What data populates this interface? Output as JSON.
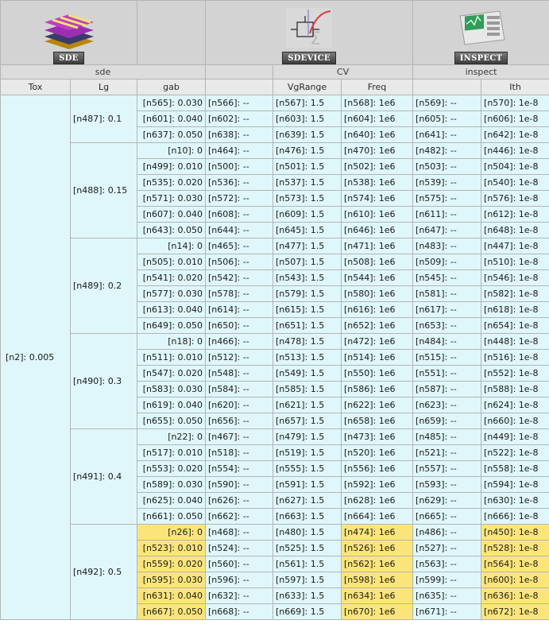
{
  "tools": [
    {
      "name": "SDE",
      "icon": "sde-layers-icon",
      "scenario": "sde"
    },
    {
      "name": "SDEVICE",
      "icon": "sdevice-cv-icon",
      "scenario": "CV"
    },
    {
      "name": "INSPECT",
      "icon": "inspect-scope-icon",
      "scenario": "inspect"
    }
  ],
  "columns": [
    "Tox",
    "Lg",
    "gab",
    "",
    "VgRange",
    "Freq",
    "",
    "Ith"
  ],
  "tox": "[n2]: 0.005",
  "highlight_color": "#fbe57a",
  "cell_color": "#dff7fa",
  "groups": [
    {
      "lg": "[n487]: 0.1",
      "rows": [
        {
          "gab": "[n565]: 0.030",
          "c": [
            "[n566]: --",
            "[n567]: 1.5",
            "[n568]: 1e6",
            "[n569]: --",
            "[n570]: 1e-8"
          ]
        },
        {
          "gab": "[n601]: 0.040",
          "c": [
            "[n602]: --",
            "[n603]: 1.5",
            "[n604]: 1e6",
            "[n605]: --",
            "[n606]: 1e-8"
          ]
        },
        {
          "gab": "[n637]: 0.050",
          "c": [
            "[n638]: --",
            "[n639]: 1.5",
            "[n640]: 1e6",
            "[n641]: --",
            "[n642]: 1e-8"
          ]
        }
      ]
    },
    {
      "lg": "[n488]: 0.15",
      "rows": [
        {
          "gab": "[n10]: 0",
          "c": [
            "[n464]: --",
            "[n476]: 1.5",
            "[n470]: 1e6",
            "[n482]: --",
            "[n446]: 1e-8"
          ]
        },
        {
          "gab": "[n499]: 0.010",
          "c": [
            "[n500]: --",
            "[n501]: 1.5",
            "[n502]: 1e6",
            "[n503]: --",
            "[n504]: 1e-8"
          ]
        },
        {
          "gab": "[n535]: 0.020",
          "c": [
            "[n536]: --",
            "[n537]: 1.5",
            "[n538]: 1e6",
            "[n539]: --",
            "[n540]: 1e-8"
          ]
        },
        {
          "gab": "[n571]: 0.030",
          "c": [
            "[n572]: --",
            "[n573]: 1.5",
            "[n574]: 1e6",
            "[n575]: --",
            "[n576]: 1e-8"
          ]
        },
        {
          "gab": "[n607]: 0.040",
          "c": [
            "[n608]: --",
            "[n609]: 1.5",
            "[n610]: 1e6",
            "[n611]: --",
            "[n612]: 1e-8"
          ]
        },
        {
          "gab": "[n643]: 0.050",
          "c": [
            "[n644]: --",
            "[n645]: 1.5",
            "[n646]: 1e6",
            "[n647]: --",
            "[n648]: 1e-8"
          ]
        }
      ]
    },
    {
      "lg": "[n489]: 0.2",
      "rows": [
        {
          "gab": "[n14]: 0",
          "c": [
            "[n465]: --",
            "[n477]: 1.5",
            "[n471]: 1e6",
            "[n483]: --",
            "[n447]: 1e-8"
          ]
        },
        {
          "gab": "[n505]: 0.010",
          "c": [
            "[n506]: --",
            "[n507]: 1.5",
            "[n508]: 1e6",
            "[n509]: --",
            "[n510]: 1e-8"
          ]
        },
        {
          "gab": "[n541]: 0.020",
          "c": [
            "[n542]: --",
            "[n543]: 1.5",
            "[n544]: 1e6",
            "[n545]: --",
            "[n546]: 1e-8"
          ]
        },
        {
          "gab": "[n577]: 0.030",
          "c": [
            "[n578]: --",
            "[n579]: 1.5",
            "[n580]: 1e6",
            "[n581]: --",
            "[n582]: 1e-8"
          ]
        },
        {
          "gab": "[n613]: 0.040",
          "c": [
            "[n614]: --",
            "[n615]: 1.5",
            "[n616]: 1e6",
            "[n617]: --",
            "[n618]: 1e-8"
          ]
        },
        {
          "gab": "[n649]: 0.050",
          "c": [
            "[n650]: --",
            "[n651]: 1.5",
            "[n652]: 1e6",
            "[n653]: --",
            "[n654]: 1e-8"
          ]
        }
      ]
    },
    {
      "lg": "[n490]: 0.3",
      "rows": [
        {
          "gab": "[n18]: 0",
          "c": [
            "[n466]: --",
            "[n478]: 1.5",
            "[n472]: 1e6",
            "[n484]: --",
            "[n448]: 1e-8"
          ]
        },
        {
          "gab": "[n511]: 0.010",
          "c": [
            "[n512]: --",
            "[n513]: 1.5",
            "[n514]: 1e6",
            "[n515]: --",
            "[n516]: 1e-8"
          ]
        },
        {
          "gab": "[n547]: 0.020",
          "c": [
            "[n548]: --",
            "[n549]: 1.5",
            "[n550]: 1e6",
            "[n551]: --",
            "[n552]: 1e-8"
          ]
        },
        {
          "gab": "[n583]: 0.030",
          "c": [
            "[n584]: --",
            "[n585]: 1.5",
            "[n586]: 1e6",
            "[n587]: --",
            "[n588]: 1e-8"
          ]
        },
        {
          "gab": "[n619]: 0.040",
          "c": [
            "[n620]: --",
            "[n621]: 1.5",
            "[n622]: 1e6",
            "[n623]: --",
            "[n624]: 1e-8"
          ]
        },
        {
          "gab": "[n655]: 0.050",
          "c": [
            "[n656]: --",
            "[n657]: 1.5",
            "[n658]: 1e6",
            "[n659]: --",
            "[n660]: 1e-8"
          ]
        }
      ]
    },
    {
      "lg": "[n491]: 0.4",
      "rows": [
        {
          "gab": "[n22]: 0",
          "c": [
            "[n467]: --",
            "[n479]: 1.5",
            "[n473]: 1e6",
            "[n485]: --",
            "[n449]: 1e-8"
          ]
        },
        {
          "gab": "[n517]: 0.010",
          "c": [
            "[n518]: --",
            "[n519]: 1.5",
            "[n520]: 1e6",
            "[n521]: --",
            "[n522]: 1e-8"
          ]
        },
        {
          "gab": "[n553]: 0.020",
          "c": [
            "[n554]: --",
            "[n555]: 1.5",
            "[n556]: 1e6",
            "[n557]: --",
            "[n558]: 1e-8"
          ]
        },
        {
          "gab": "[n589]: 0.030",
          "c": [
            "[n590]: --",
            "[n591]: 1.5",
            "[n592]: 1e6",
            "[n593]: --",
            "[n594]: 1e-8"
          ]
        },
        {
          "gab": "[n625]: 0.040",
          "c": [
            "[n626]: --",
            "[n627]: 1.5",
            "[n628]: 1e6",
            "[n629]: --",
            "[n630]: 1e-8"
          ]
        },
        {
          "gab": "[n661]: 0.050",
          "c": [
            "[n662]: --",
            "[n663]: 1.5",
            "[n664]: 1e6",
            "[n665]: --",
            "[n666]: 1e-8"
          ]
        }
      ]
    },
    {
      "lg": "[n492]: 0.5",
      "highlight": true,
      "rows": [
        {
          "gab": "[n26]: 0",
          "c": [
            "[n468]: --",
            "[n480]: 1.5",
            "[n474]: 1e6",
            "[n486]: --",
            "[n450]: 1e-8"
          ]
        },
        {
          "gab": "[n523]: 0.010",
          "c": [
            "[n524]: --",
            "[n525]: 1.5",
            "[n526]: 1e6",
            "[n527]: --",
            "[n528]: 1e-8"
          ]
        },
        {
          "gab": "[n559]: 0.020",
          "c": [
            "[n560]: --",
            "[n561]: 1.5",
            "[n562]: 1e6",
            "[n563]: --",
            "[n564]: 1e-8"
          ]
        },
        {
          "gab": "[n595]: 0.030",
          "c": [
            "[n596]: --",
            "[n597]: 1.5",
            "[n598]: 1e6",
            "[n599]: --",
            "[n600]: 1e-8"
          ]
        },
        {
          "gab": "[n631]: 0.040",
          "c": [
            "[n632]: --",
            "[n633]: 1.5",
            "[n634]: 1e6",
            "[n635]: --",
            "[n636]: 1e-8"
          ]
        },
        {
          "gab": "[n667]: 0.050",
          "c": [
            "[n668]: --",
            "[n669]: 1.5",
            "[n670]: 1e6",
            "[n671]: --",
            "[n672]: 1e-8"
          ]
        }
      ]
    }
  ]
}
